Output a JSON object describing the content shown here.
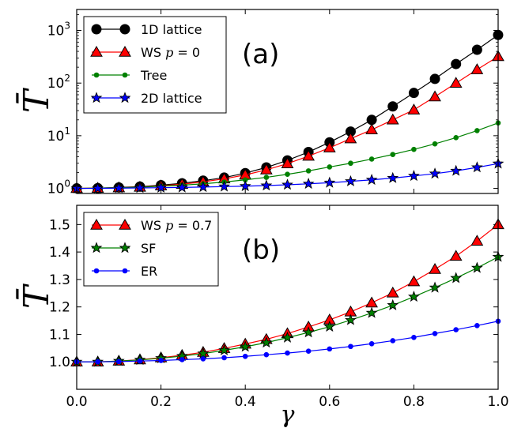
{
  "chart_data": [
    {
      "type": "line",
      "panel_label": "(a)",
      "ylabel": "T̄",
      "yscale": "log",
      "ylim": [
        0.8,
        2500
      ],
      "xlim": [
        0.0,
        1.0
      ],
      "y_ticks": [
        {
          "value": 1,
          "base": "10",
          "exp": "0"
        },
        {
          "value": 10,
          "base": "10",
          "exp": "1"
        },
        {
          "value": 100,
          "base": "10",
          "exp": "2"
        },
        {
          "value": 1000,
          "base": "10",
          "exp": "3"
        }
      ],
      "legend_position": "top-left",
      "x": [
        0.0,
        0.05,
        0.1,
        0.15,
        0.2,
        0.25,
        0.3,
        0.35,
        0.4,
        0.45,
        0.5,
        0.55,
        0.6,
        0.65,
        0.7,
        0.75,
        0.8,
        0.85,
        0.9,
        0.95,
        1.0
      ],
      "series": [
        {
          "name": "1D lattice",
          "color": "#000000",
          "marker": "circle",
          "values": [
            1.0,
            1.01,
            1.04,
            1.08,
            1.15,
            1.25,
            1.4,
            1.6,
            1.95,
            2.5,
            3.4,
            4.9,
            7.5,
            12,
            20,
            36,
            65,
            120,
            230,
            430,
            820
          ]
        },
        {
          "name_parts": [
            "WS ",
            "p",
            " = 0"
          ],
          "color": "#ff0000",
          "marker": "triangle",
          "values": [
            1.0,
            1.01,
            1.03,
            1.06,
            1.12,
            1.2,
            1.33,
            1.52,
            1.8,
            2.25,
            2.95,
            4.1,
            5.9,
            8.8,
            13,
            20,
            31,
            55,
            100,
            180,
            320
          ]
        },
        {
          "name": "Tree",
          "color": "#008000",
          "marker": "dot",
          "values": [
            1.0,
            1.01,
            1.03,
            1.05,
            1.1,
            1.15,
            1.22,
            1.32,
            1.45,
            1.62,
            1.85,
            2.15,
            2.55,
            3.0,
            3.6,
            4.4,
            5.5,
            7.0,
            9.2,
            12.5,
            17.5
          ]
        },
        {
          "name": "2D lattice",
          "color": "#0000ff",
          "marker": "star",
          "values": [
            1.0,
            1.0,
            1.01,
            1.02,
            1.03,
            1.04,
            1.06,
            1.08,
            1.1,
            1.13,
            1.17,
            1.22,
            1.28,
            1.36,
            1.45,
            1.57,
            1.72,
            1.9,
            2.15,
            2.5,
            2.95
          ]
        }
      ]
    },
    {
      "type": "line",
      "panel_label": "(b)",
      "ylabel": "T̄",
      "xlabel": "γ",
      "yscale": "linear",
      "ylim": [
        0.9,
        1.57
      ],
      "xlim": [
        0.0,
        1.0
      ],
      "y_ticks": [
        "1.0",
        "1.1",
        "1.2",
        "1.3",
        "1.4",
        "1.5"
      ],
      "x_ticks": [
        "0.0",
        "0.2",
        "0.4",
        "0.6",
        "0.8",
        "1.0"
      ],
      "legend_position": "top-left",
      "x": [
        0.0,
        0.05,
        0.1,
        0.15,
        0.2,
        0.25,
        0.3,
        0.35,
        0.4,
        0.45,
        0.5,
        0.55,
        0.6,
        0.65,
        0.7,
        0.75,
        0.8,
        0.85,
        0.9,
        0.95,
        1.0
      ],
      "series": [
        {
          "name_parts": [
            "WS ",
            "p",
            " = 0.7"
          ],
          "color": "#ff0000",
          "marker": "triangle",
          "values": [
            1.0,
            1.0,
            1.003,
            1.008,
            1.015,
            1.024,
            1.035,
            1.049,
            1.065,
            1.082,
            1.103,
            1.127,
            1.153,
            1.182,
            1.215,
            1.251,
            1.292,
            1.337,
            1.385,
            1.44,
            1.5
          ]
        },
        {
          "name": "SF",
          "color": "#008000",
          "marker": "star",
          "values": [
            1.0,
            1.0,
            1.003,
            1.007,
            1.013,
            1.021,
            1.03,
            1.042,
            1.055,
            1.07,
            1.088,
            1.107,
            1.128,
            1.152,
            1.178,
            1.206,
            1.237,
            1.27,
            1.305,
            1.342,
            1.382
          ]
        },
        {
          "name": "ER",
          "color": "#0000ff",
          "marker": "dot",
          "values": [
            1.0,
            1.0,
            1.001,
            1.003,
            1.005,
            1.008,
            1.011,
            1.015,
            1.02,
            1.026,
            1.032,
            1.039,
            1.047,
            1.056,
            1.066,
            1.077,
            1.089,
            1.103,
            1.117,
            1.132,
            1.148
          ]
        }
      ]
    }
  ]
}
